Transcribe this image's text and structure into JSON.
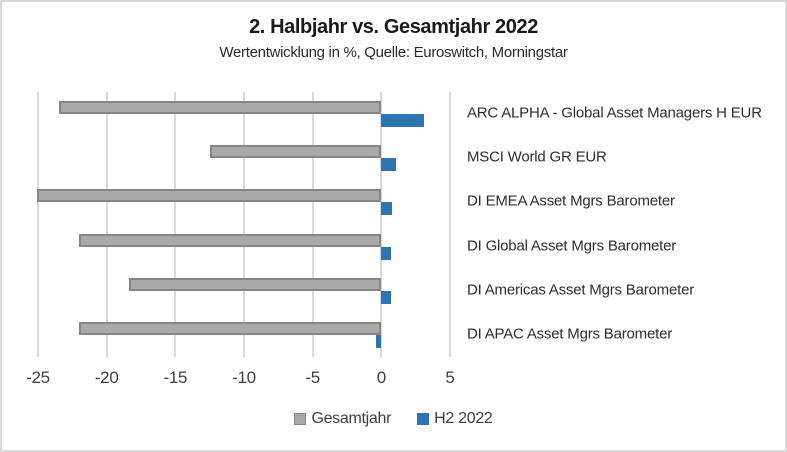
{
  "chart_data": {
    "type": "bar",
    "orientation": "horizontal",
    "title": "2. Halbjahr vs. Gesamtjahr 2022",
    "subtitle": "Wertentwicklung in %, Quelle: Euroswitch, Morningstar",
    "categories": [
      "ARC ALPHA - Global Asset Managers H EUR",
      "MSCI World GR EUR",
      "DI EMEA Asset Mgrs Barometer",
      "DI Global Asset Mgrs Barometer",
      "DI Americas Asset Mgrs Barometer",
      "DI APAC Asset Mgrs Barometer"
    ],
    "series": [
      {
        "name": "Gesamtjahr",
        "color": "#a9a9a9",
        "border_color": "#868686",
        "values": [
          -23.5,
          -12.5,
          -25.1,
          -22.0,
          -18.4,
          -22.0
        ]
      },
      {
        "name": "H2 2022",
        "color": "#2e74b5",
        "values": [
          3.1,
          1.1,
          0.8,
          0.7,
          0.7,
          -0.4
        ]
      }
    ],
    "x_ticks": [
      -25,
      -20,
      -15,
      -10,
      -5,
      0,
      5
    ],
    "x_min": -25,
    "x_max": 5,
    "grid": true,
    "legend_position": "bottom",
    "colors": {
      "gridline": "#d9d9d9",
      "frame_border": "#d9d9d9",
      "gesamtjahr_fill": "#a9a9a9",
      "gesamtjahr_border": "#868686",
      "h2_fill": "#2e74b5"
    }
  }
}
